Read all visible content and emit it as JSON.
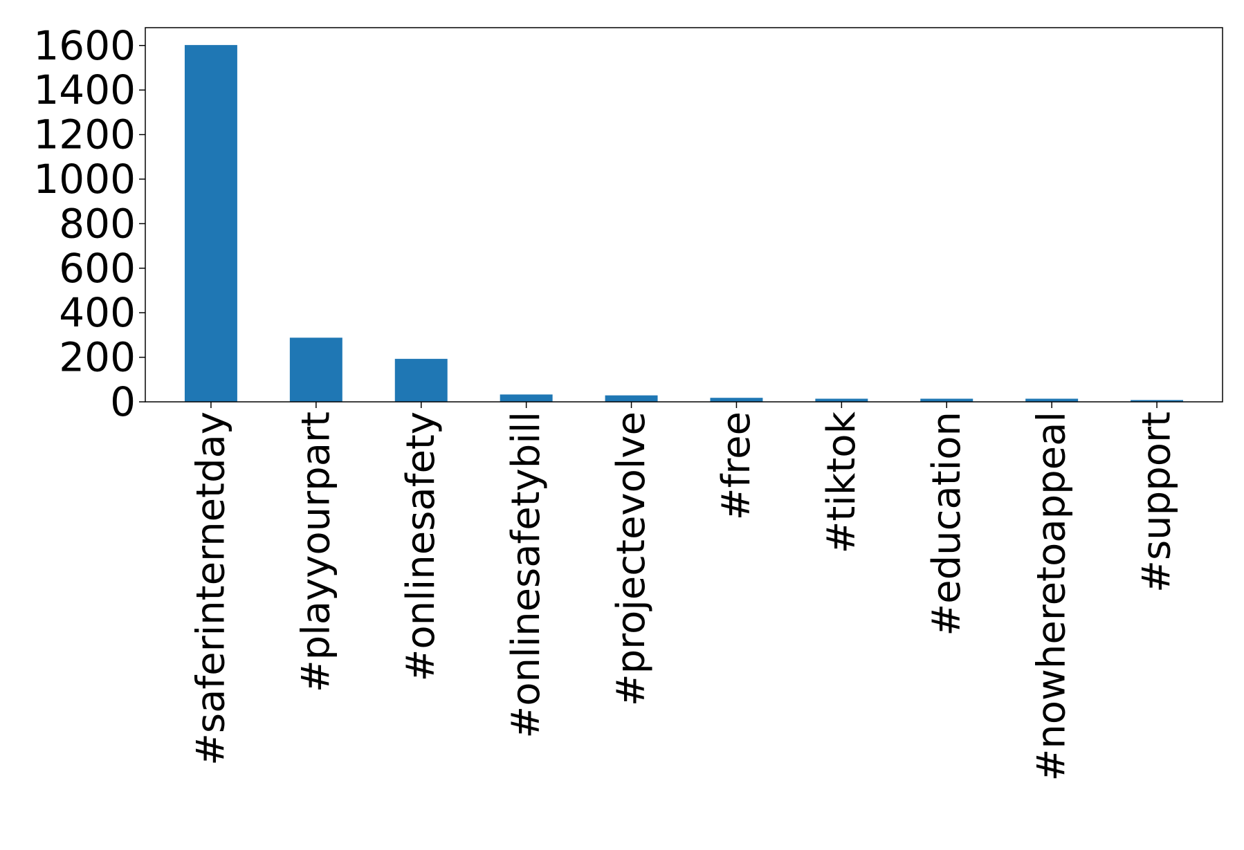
{
  "chart_data": {
    "type": "bar",
    "title": "",
    "xlabel": "",
    "ylabel": "",
    "categories": [
      "#saferinternetday",
      "#playyourpart",
      "#onlinesafety",
      "#onlinesafetybill",
      "#projectevolve",
      "#free",
      "#tiktok",
      "#education",
      "#nowheretoappeal",
      "#support"
    ],
    "values": [
      1602,
      288,
      193,
      33,
      29,
      18,
      14,
      14,
      14,
      8
    ],
    "ylim": [
      0,
      1680
    ],
    "yticks": [
      0,
      200,
      400,
      600,
      800,
      1000,
      1200,
      1400,
      1600
    ],
    "ytick_labels": [
      "0",
      "200",
      "400",
      "600",
      "800",
      "1000",
      "1200",
      "1400",
      "1600"
    ],
    "grid": false,
    "legend": "none",
    "bar_color": "#1f77b4"
  }
}
